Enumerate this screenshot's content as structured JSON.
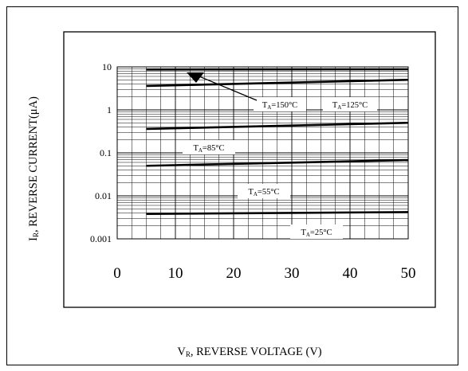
{
  "chart_data": {
    "type": "line",
    "xlabel_main": "V",
    "xlabel_sub": "R",
    "xlabel_rest": ", REVERSE VOLTAGE (V)",
    "ylabel_main": "I",
    "ylabel_sub": "R",
    "ylabel_rest": ", REVERSE CURRENT(μA)",
    "xlim": [
      0,
      50
    ],
    "ylim": [
      0.001,
      10
    ],
    "yscale": "log",
    "grid": true,
    "x_ticks": [
      "0",
      "10",
      "20",
      "30",
      "40",
      "50"
    ],
    "y_ticks": [
      "10",
      "1",
      "0.1",
      "0.01",
      "0.001"
    ],
    "series": [
      {
        "name": "T_A=150°C",
        "label_main": "T",
        "label_sub": "A",
        "label_rest": "=150°C",
        "x": [
          5,
          50
        ],
        "y": [
          8.7,
          8.8
        ]
      },
      {
        "name": "T_A=125°C",
        "label_main": "T",
        "label_sub": "A",
        "label_rest": "=125°C",
        "x": [
          5,
          50
        ],
        "y": [
          3.6,
          5.0
        ]
      },
      {
        "name": "T_A=85°C",
        "label_main": "T",
        "label_sub": "A",
        "label_rest": "=85°C",
        "x": [
          5,
          50
        ],
        "y": [
          0.36,
          0.5
        ]
      },
      {
        "name": "T_A=55°C",
        "label_main": "T",
        "label_sub": "A",
        "label_rest": "=55°C",
        "x": [
          5,
          50
        ],
        "y": [
          0.05,
          0.068
        ]
      },
      {
        "name": "T_A=25°C",
        "label_main": "T",
        "label_sub": "A",
        "label_rest": "=25°C",
        "x": [
          5,
          50
        ],
        "y": [
          0.0038,
          0.0042
        ]
      }
    ]
  }
}
